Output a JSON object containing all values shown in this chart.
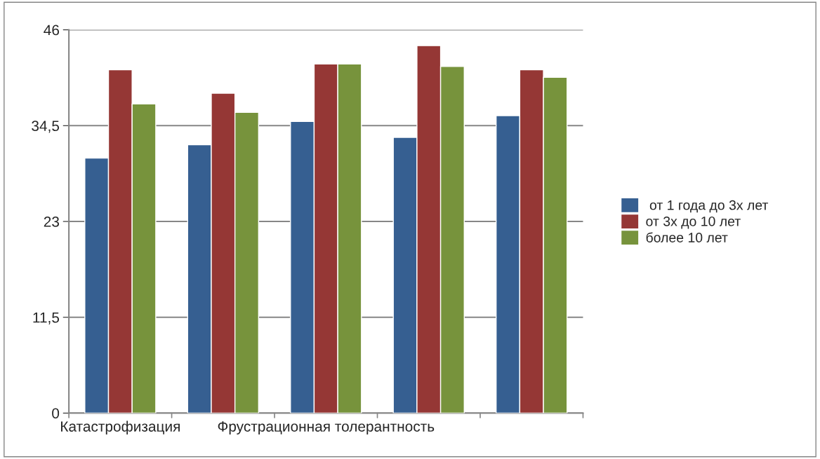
{
  "chart_data": {
    "type": "bar",
    "categories": [
      "Катастрофизация",
      null,
      "Фрустрационная толерантность",
      null,
      null
    ],
    "series": [
      {
        "name": " от 1 года до 3х лет",
        "color": "#365f91",
        "values": [
          30.6,
          32.2,
          35.0,
          33.1,
          35.7
        ]
      },
      {
        "name": "от 3х до 10 лет",
        "color": "#953735",
        "values": [
          41.2,
          38.4,
          41.9,
          44.1,
          41.2
        ]
      },
      {
        "name": "более 10 лет",
        "color": "#77933c",
        "values": [
          37.1,
          36.1,
          41.9,
          41.6,
          40.3
        ]
      }
    ],
    "ylim": [
      0,
      46
    ],
    "yticks": [
      0,
      {
        "value": 11.5,
        "label": "11,5"
      },
      23,
      {
        "value": 34.5,
        "label": "34,5"
      },
      46
    ],
    "grid": "y",
    "legend": "right"
  }
}
